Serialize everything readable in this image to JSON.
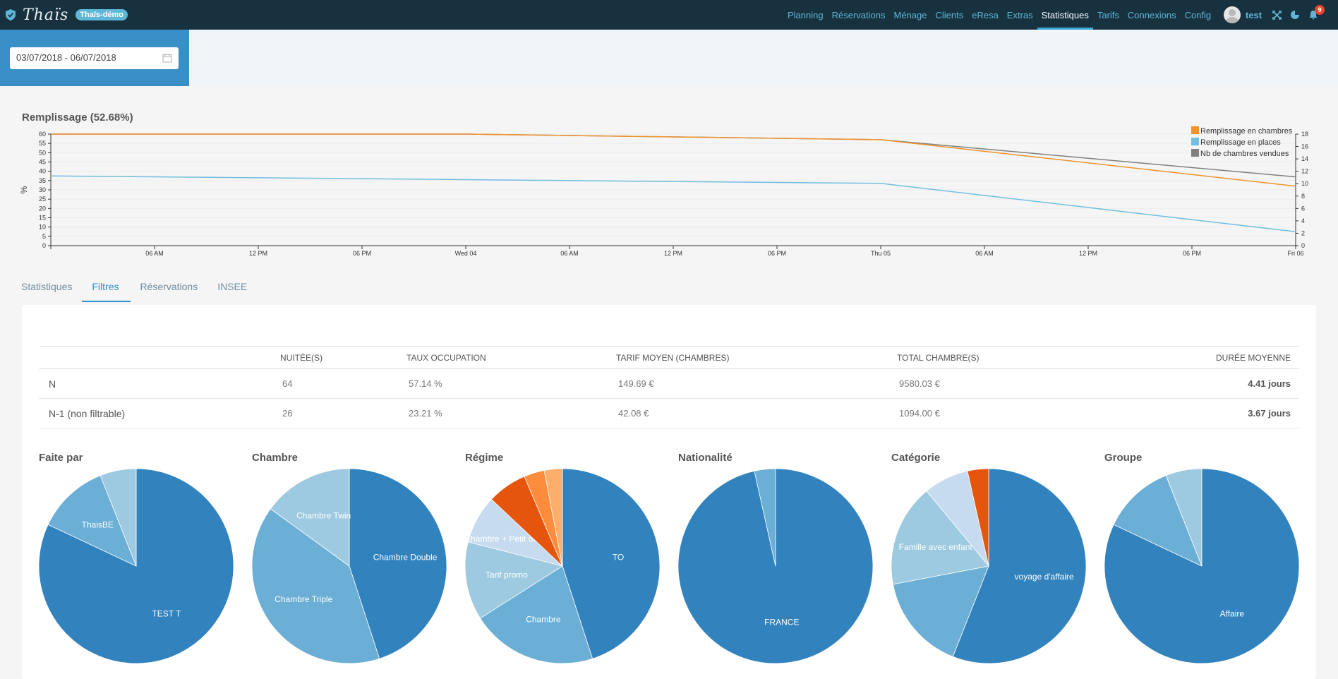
{
  "app": {
    "brand": "Thaïs",
    "badge": "Thaïs-démo",
    "nav": [
      "Planning",
      "Réservations",
      "Ménage",
      "Clients",
      "eResa",
      "Extras",
      "Statistiques",
      "Tarifs",
      "Connexions",
      "Config"
    ],
    "active_nav": "Statistiques",
    "user": "test",
    "notifications": "9"
  },
  "date_range": {
    "value": "03/07/2018 - 06/07/2018"
  },
  "occupancy_chart": {
    "title": "Remplissage (52.68%)",
    "ylabel_left": "%",
    "legend": [
      {
        "label": "Remplissage en chambres",
        "color": "#f0932b"
      },
      {
        "label": "Remplissage en places",
        "color": "#70bfe0"
      },
      {
        "label": "Nb de chambres vendues",
        "color": "#808080"
      }
    ]
  },
  "chart_data": {
    "type": "line",
    "title": "Remplissage (52.68%)",
    "ylabel": "%",
    "ylim": [
      0,
      60
    ],
    "y2lim": [
      0,
      18
    ],
    "yticks": [
      0,
      5,
      10,
      15,
      20,
      25,
      30,
      35,
      40,
      45,
      50,
      55,
      60
    ],
    "y2ticks": [
      0,
      2,
      4,
      6,
      8,
      10,
      12,
      14,
      16,
      18
    ],
    "xticks": [
      "06 AM",
      "12 PM",
      "06 PM",
      "Wed 04",
      "06 AM",
      "12 PM",
      "06 PM",
      "Thu 05",
      "06 AM",
      "12 PM",
      "06 PM",
      "Fri 06"
    ],
    "x_hours": [
      0,
      24,
      48,
      72
    ],
    "series": [
      {
        "name": "Remplissage en chambres",
        "color": "#f0932b",
        "axis": "left",
        "x": [
          0,
          24,
          48,
          72
        ],
        "values": [
          60,
          60,
          57,
          32
        ]
      },
      {
        "name": "Remplissage en places",
        "color": "#70bfe0",
        "axis": "left",
        "x": [
          0,
          24,
          48,
          72
        ],
        "values": [
          37.5,
          35.5,
          33.5,
          7.5
        ]
      },
      {
        "name": "Nb de chambres vendues",
        "color": "#808080",
        "axis": "right",
        "x": [
          0,
          24,
          48,
          72
        ],
        "values": [
          18,
          18,
          17.1,
          11.1
        ]
      }
    ],
    "legend_position": "top-right",
    "grid": true
  },
  "tabs": [
    "Statistiques",
    "Filtres",
    "Réservations",
    "INSEE"
  ],
  "active_tab": "Filtres",
  "table": {
    "headers": [
      "",
      "NUITÉE(S)",
      "TAUX OCCUPATION",
      "TARIF MOYEN (CHAMBRES)",
      "TOTAL CHAMBRE(S)",
      "DURÉE MOYENNE"
    ],
    "rows": [
      [
        "N",
        "64",
        "57.14 %",
        "149.69 €",
        "9580.03 €",
        "4.41 jours"
      ],
      [
        "N-1 (non filtrable)",
        "26",
        "23.21 %",
        "42.08 €",
        "1094.00 €",
        "3.67 jours"
      ]
    ]
  },
  "pies": [
    {
      "title": "Faite par",
      "slices": [
        {
          "label": "TEST T",
          "value": 0.82,
          "color": "#3182bd"
        },
        {
          "label": "ThaisBE",
          "value": 0.12,
          "color": "#6baed6"
        },
        {
          "label": "",
          "value": 0.06,
          "color": "#9ecae1"
        }
      ]
    },
    {
      "title": "Chambre",
      "slices": [
        {
          "label": "Chambre Double",
          "value": 0.45,
          "color": "#3182bd"
        },
        {
          "label": "Chambre Triple",
          "value": 0.4,
          "color": "#6baed6"
        },
        {
          "label": "Chambre Twin",
          "value": 0.15,
          "color": "#9ecae1"
        }
      ]
    },
    {
      "title": "Régime",
      "slices": [
        {
          "label": "TO",
          "value": 0.45,
          "color": "#3182bd"
        },
        {
          "label": "Chambre",
          "value": 0.21,
          "color": "#6baed6"
        },
        {
          "label": "Tarif promo",
          "value": 0.13,
          "color": "#9ecae1"
        },
        {
          "label": "Chambre + Petit déjeuner",
          "value": 0.08,
          "color": "#c6dbef"
        },
        {
          "label": "",
          "value": 0.066,
          "color": "#e6550d"
        },
        {
          "label": "",
          "value": 0.034,
          "color": "#fd8d3c"
        },
        {
          "label": "",
          "value": 0.03,
          "color": "#fdae6b"
        }
      ]
    },
    {
      "title": "Nationalité",
      "slices": [
        {
          "label": "FRANCE",
          "value": 0.965,
          "color": "#3182bd"
        },
        {
          "label": "",
          "value": 0.035,
          "color": "#6baed6"
        }
      ]
    },
    {
      "title": "Catégorie",
      "slices": [
        {
          "label": "voyage d'affaire",
          "value": 0.56,
          "color": "#3182bd"
        },
        {
          "label": "",
          "value": 0.16,
          "color": "#6baed6"
        },
        {
          "label": "Famille avec enfant",
          "value": 0.17,
          "color": "#9ecae1"
        },
        {
          "label": "",
          "value": 0.075,
          "color": "#c6dbef"
        },
        {
          "label": "",
          "value": 0.035,
          "color": "#e6550d"
        }
      ]
    },
    {
      "title": "Groupe",
      "slices": [
        {
          "label": "Affaire",
          "value": 0.82,
          "color": "#3182bd"
        },
        {
          "label": "",
          "value": 0.12,
          "color": "#6baed6"
        },
        {
          "label": "",
          "value": 0.06,
          "color": "#9ecae1"
        }
      ]
    }
  ]
}
